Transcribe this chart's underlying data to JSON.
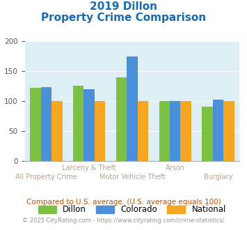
{
  "title_line1": "2019 Dillon",
  "title_line2": "Property Crime Comparison",
  "title_color": "#1a6aad",
  "categories": [
    "All Property Crime",
    "Larceny & Theft",
    "Motor Vehicle Theft",
    "Arson",
    "Burglary"
  ],
  "dillon": [
    122,
    126,
    140,
    100,
    91
  ],
  "colorado": [
    123,
    120,
    175,
    100,
    103
  ],
  "national": [
    100,
    100,
    100,
    100,
    100
  ],
  "dillon_color": "#7dc142",
  "colorado_color": "#4a90d9",
  "national_color": "#f5a623",
  "bg_color": "#ddeef4",
  "ylim": [
    0,
    200
  ],
  "yticks": [
    0,
    50,
    100,
    150,
    200
  ],
  "footnote": "Compared to U.S. average. (U.S. average equals 100)",
  "footnote_color": "#c05000",
  "copyright": "© 2025 CityRating.com - https://www.cityrating.com/crime-statistics/",
  "copyright_color": "#999999",
  "copyright_link_color": "#4a90d9"
}
